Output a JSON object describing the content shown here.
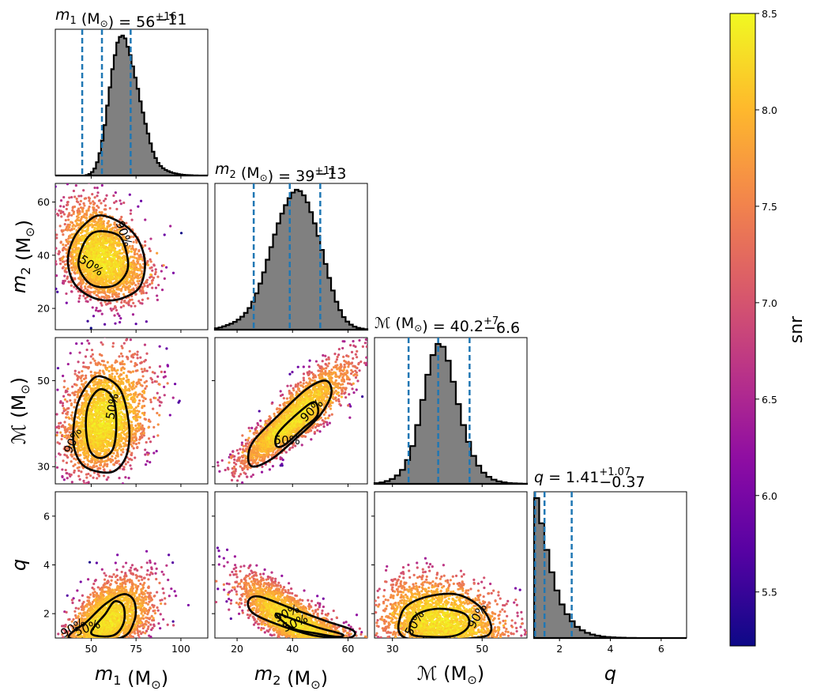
{
  "chart_data": {
    "type": "scatter",
    "colorbar": {
      "label": "snr",
      "min": 5.22,
      "max": 8.5,
      "ticks": [
        5.5,
        6.0,
        6.5,
        7.0,
        7.5,
        8.0,
        8.5
      ],
      "tick_labels": [
        "5.5",
        "6.0",
        "6.5",
        "7.0",
        "7.5",
        "8.0",
        "8.5"
      ],
      "colormap": "plasma"
    },
    "parameters": [
      {
        "key": "m1",
        "axis_label_sym": "m",
        "axis_label_sub": "1",
        "axis_label_unit": " (M",
        "range": [
          30,
          115
        ],
        "ticks": [
          50,
          75,
          100
        ],
        "tick_labels": [
          "50",
          "75",
          "100"
        ],
        "title": {
          "sym": "m",
          "sub": "1",
          "unit": " (M",
          "eq": ") = 56",
          "sup": "+16",
          "low": "−11"
        },
        "median": 56,
        "lower": 45,
        "upper": 72,
        "hist": [
          0,
          0,
          0,
          0,
          0,
          0,
          0,
          0,
          0,
          0,
          0,
          0,
          0.004,
          0.011,
          0.025,
          0.05,
          0.095,
          0.16,
          0.25,
          0.36,
          0.5,
          0.63,
          0.76,
          0.86,
          0.95,
          0.99,
          1,
          0.98,
          0.92,
          0.86,
          0.78,
          0.7,
          0.62,
          0.53,
          0.45,
          0.37,
          0.3,
          0.23,
          0.17,
          0.125,
          0.09,
          0.068,
          0.052,
          0.04,
          0.031,
          0.024,
          0.018,
          0.014,
          0.01,
          0.007,
          0.005,
          0.004,
          0.003,
          0.002,
          0.001,
          0.001,
          0,
          0,
          0,
          0
        ]
      },
      {
        "key": "m2",
        "axis_label_sym": "m",
        "axis_label_sub": "2",
        "axis_label_unit": " (M",
        "range": [
          12,
          67
        ],
        "ticks": [
          20,
          40,
          60
        ],
        "tick_labels": [
          "20",
          "40",
          "60"
        ],
        "title": {
          "sym": "m",
          "sub": "2",
          "unit": " (M",
          "eq": ") = 39",
          "sup": "+11",
          "low": "−13"
        },
        "median": 39,
        "lower": 26,
        "upper": 50,
        "hist": [
          0.01,
          0.016,
          0.024,
          0.033,
          0.043,
          0.056,
          0.072,
          0.093,
          0.12,
          0.155,
          0.2,
          0.26,
          0.33,
          0.41,
          0.5,
          0.59,
          0.68,
          0.76,
          0.83,
          0.89,
          0.94,
          0.98,
          1,
          0.99,
          0.96,
          0.91,
          0.84,
          0.76,
          0.67,
          0.57,
          0.47,
          0.37,
          0.28,
          0.2,
          0.14,
          0.09,
          0.058,
          0.036,
          0.022,
          0.013,
          0.008,
          0.004
        ]
      },
      {
        "key": "Mc",
        "axis_label_sym": "ℳ",
        "axis_label_sub": "",
        "axis_label_unit": " (M",
        "range": [
          26,
          60
        ],
        "ticks": [
          30,
          50
        ],
        "tick_labels": [
          "30",
          "50"
        ],
        "title": {
          "sym": "ℳ",
          "sub": "",
          "unit": " (M",
          "eq": ") = 40.2",
          "sup": "+7",
          "low": "−6.6"
        },
        "median": 40.2,
        "lower": 33.6,
        "upper": 47.2,
        "hist": [
          0.005,
          0.01,
          0.02,
          0.035,
          0.06,
          0.1,
          0.17,
          0.27,
          0.42,
          0.6,
          0.78,
          0.92,
          1,
          0.98,
          0.88,
          0.73,
          0.57,
          0.42,
          0.3,
          0.2,
          0.13,
          0.08,
          0.05,
          0.03,
          0.018,
          0.011,
          0.006,
          0.004,
          0.002,
          0.001
        ]
      },
      {
        "key": "q",
        "axis_label_sym": "q",
        "axis_label_sub": "",
        "axis_label_unit": "",
        "range": [
          1,
          7
        ],
        "ticks": [
          2,
          4,
          6
        ],
        "tick_labels": [
          "2",
          "4",
          "6"
        ],
        "title": {
          "sym": "q",
          "sub": "",
          "unit": "",
          "eq": " = 1.41",
          "sup": "+1.07",
          "low": "−0.37"
        },
        "median": 1.41,
        "lower": 1.04,
        "upper": 2.48,
        "hist": [
          1,
          0.82,
          0.63,
          0.47,
          0.34,
          0.24,
          0.17,
          0.12,
          0.08,
          0.055,
          0.037,
          0.025,
          0.017,
          0.011,
          0.007,
          0.005,
          0.003,
          0.002,
          0.001,
          0.001,
          0,
          0,
          0,
          0,
          0,
          0,
          0,
          0,
          0,
          0
        ]
      }
    ],
    "y_ticks": {
      "m2": {
        "values": [
          20,
          40,
          60
        ],
        "labels": [
          "20",
          "40",
          "60"
        ]
      },
      "Mc": {
        "values": [
          30,
          50
        ],
        "labels": [
          "30",
          "50"
        ]
      },
      "q": {
        "values": [
          2,
          4,
          6
        ],
        "labels": [
          "2",
          "4",
          "6"
        ]
      }
    },
    "contour_levels": [
      "50%",
      "90%"
    ],
    "pairs": [
      {
        "x": "m1",
        "y": "m2",
        "c50": [
          [
            57,
            49
          ],
          [
            66,
            47
          ],
          [
            70,
            40
          ],
          [
            70,
            34
          ],
          [
            64,
            29
          ],
          [
            55,
            28
          ],
          [
            48,
            30
          ],
          [
            43,
            36
          ],
          [
            45,
            43
          ],
          [
            50,
            48
          ]
        ],
        "c90": [
          [
            55,
            55
          ],
          [
            67,
            52
          ],
          [
            76,
            46
          ],
          [
            80,
            37
          ],
          [
            77,
            28
          ],
          [
            68,
            24
          ],
          [
            58,
            23
          ],
          [
            48,
            25
          ],
          [
            40,
            30
          ],
          [
            37,
            38
          ],
          [
            40,
            46
          ],
          [
            47,
            52
          ]
        ],
        "l50": {
          "x": 50,
          "y": 36,
          "text": "50%",
          "rot": 35
        },
        "l90": {
          "x": 68,
          "y": 48,
          "text": "90%",
          "rot": 70
        },
        "cloud": {
          "mx": 55,
          "my": 38,
          "sx": 10,
          "sy": 8,
          "rho": -0.3,
          "n": 2600,
          "xmin": 30,
          "xmax": 115,
          "ymin": 12,
          "ymax": 67
        }
      },
      {
        "x": "m1",
        "y": "Mc",
        "c50": [
          [
            55,
            48
          ],
          [
            62,
            46
          ],
          [
            64,
            40
          ],
          [
            62,
            34
          ],
          [
            55,
            32
          ],
          [
            49,
            34
          ],
          [
            47,
            40
          ],
          [
            49,
            45
          ]
        ],
        "c90": [
          [
            55,
            51
          ],
          [
            66,
            48
          ],
          [
            71,
            40
          ],
          [
            70,
            33
          ],
          [
            63,
            29
          ],
          [
            52,
            29
          ],
          [
            44,
            31
          ],
          [
            40,
            36
          ],
          [
            42,
            44
          ],
          [
            48,
            49
          ]
        ],
        "l50": {
          "x": 62,
          "y": 44,
          "text": "50%",
          "rot": -80
        },
        "l90": {
          "x": 40,
          "y": 36,
          "text": "90%",
          "rot": -65
        },
        "cloud": {
          "mx": 56,
          "my": 40,
          "sx": 10,
          "sy": 6,
          "rho": 0.25,
          "n": 2600,
          "xmin": 30,
          "xmax": 115,
          "ymin": 26,
          "ymax": 60
        }
      },
      {
        "x": "m2",
        "y": "Mc",
        "c50": [
          [
            35,
            38
          ],
          [
            43,
            43
          ],
          [
            48,
            45
          ],
          [
            49,
            42
          ],
          [
            44,
            39
          ],
          [
            37,
            35
          ],
          [
            34,
            35
          ]
        ],
        "c90": [
          [
            24,
            32
          ],
          [
            26,
            36
          ],
          [
            35,
            42
          ],
          [
            45,
            48
          ],
          [
            52,
            50
          ],
          [
            54,
            47
          ],
          [
            50,
            42
          ],
          [
            42,
            37
          ],
          [
            33,
            32
          ],
          [
            26,
            30
          ]
        ],
        "l50": {
          "x": 38,
          "y": 36,
          "text": "50%",
          "rot": 0
        },
        "l90": {
          "x": 47,
          "y": 43,
          "text": "90%",
          "rot": -45
        },
        "cloud": {
          "mx": 39,
          "my": 40,
          "sx": 8.5,
          "sy": 5.5,
          "rho": 0.88,
          "n": 2600,
          "xmin": 12,
          "xmax": 67,
          "ymin": 26,
          "ymax": 60
        }
      },
      {
        "x": "m1",
        "y": "q",
        "c50": [
          [
            50,
            1.2
          ],
          [
            58,
            2.0
          ],
          [
            63,
            2.5
          ],
          [
            68,
            2.3
          ],
          [
            68,
            1.6
          ],
          [
            62,
            1.1
          ]
        ],
        "c90": [
          [
            38,
            1.0
          ],
          [
            48,
            1.7
          ],
          [
            58,
            2.4
          ],
          [
            68,
            2.8
          ],
          [
            74,
            2.5
          ],
          [
            74,
            1.7
          ],
          [
            66,
            1.0
          ]
        ],
        "l50": {
          "x": 48,
          "y": 1.4,
          "text": "50%",
          "rot": -20
        },
        "l90": {
          "x": 40,
          "y": 1.4,
          "text": "90%",
          "rot": -30
        },
        "cloud": {
          "mx": 58,
          "my": 1.6,
          "sx": 10,
          "sy": 0.7,
          "rho": 0.5,
          "n": 2600,
          "xmin": 30,
          "xmax": 115,
          "ymin": 1,
          "ymax": 7
        }
      },
      {
        "x": "m2",
        "y": "q",
        "c50": [
          [
            34,
            2.0
          ],
          [
            42,
            1.7
          ],
          [
            50,
            1.4
          ],
          [
            58,
            1.15
          ],
          [
            56,
            1.05
          ],
          [
            48,
            1.2
          ],
          [
            40,
            1.4
          ]
        ],
        "c90": [
          [
            24,
            2.5
          ],
          [
            28,
            2.7
          ],
          [
            40,
            2.2
          ],
          [
            52,
            1.7
          ],
          [
            62,
            1.3
          ],
          [
            60,
            1.0
          ],
          [
            48,
            1.1
          ],
          [
            36,
            1.5
          ],
          [
            26,
            2.0
          ]
        ],
        "l50": {
          "x": 41,
          "y": 1.6,
          "text": "50%",
          "rot": -25
        },
        "l90": {
          "x": 38,
          "y": 2.0,
          "text": "90%",
          "rot": -25
        },
        "cloud": {
          "mx": 40,
          "my": 1.6,
          "sx": 9,
          "sy": 0.7,
          "rho": -0.8,
          "n": 2600,
          "xmin": 12,
          "xmax": 67,
          "ymin": 1,
          "ymax": 7
        }
      },
      {
        "x": "Mc",
        "y": "q",
        "c50": [
          [
            34,
            1.2
          ],
          [
            35,
            1.9
          ],
          [
            40,
            2.2
          ],
          [
            46,
            2.0
          ],
          [
            47,
            1.5
          ],
          [
            44,
            1.1
          ],
          [
            38,
            1.05
          ]
        ],
        "c90": [
          [
            33,
            1.0
          ],
          [
            32,
            2.0
          ],
          [
            36,
            2.6
          ],
          [
            44,
            2.8
          ],
          [
            50,
            2.2
          ],
          [
            52,
            1.3
          ],
          [
            48,
            1.0
          ]
        ],
        "l50": {
          "x": 35,
          "y": 1.6,
          "text": "50%",
          "rot": -60
        },
        "l90": {
          "x": 49,
          "y": 1.9,
          "text": "90%",
          "rot": -60
        },
        "cloud": {
          "mx": 40,
          "my": 1.6,
          "sx": 6,
          "sy": 0.7,
          "rho": -0.2,
          "n": 2600,
          "xmin": 26,
          "xmax": 60,
          "ymin": 1,
          "ymax": 7
        }
      }
    ]
  }
}
